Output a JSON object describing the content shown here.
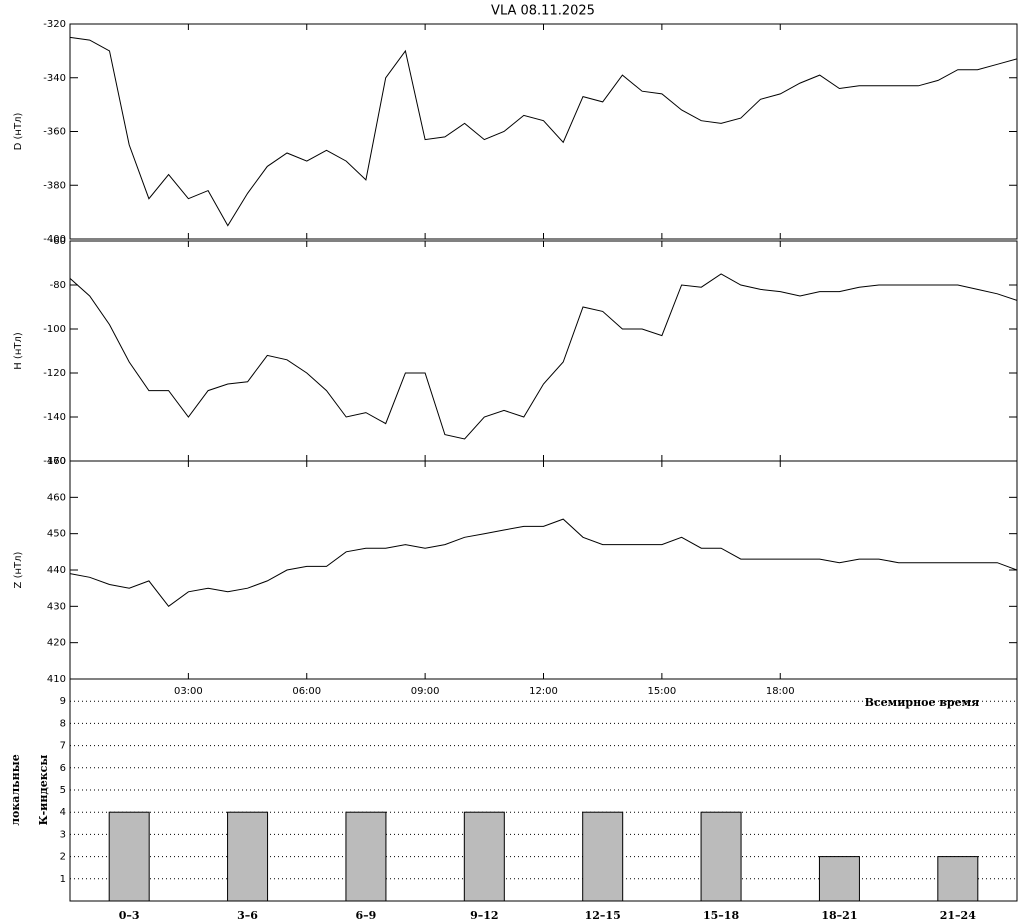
{
  "chart_data": [
    {
      "type": "line",
      "title": "VLA   08.11.2025",
      "ylabel": "D (нТл)",
      "x": [
        0,
        0.5,
        1,
        1.5,
        2,
        2.5,
        3,
        3.5,
        4,
        4.5,
        5,
        5.5,
        6,
        6.5,
        7,
        7.5,
        8,
        8.5,
        9,
        9.5,
        10,
        10.5,
        11,
        11.5,
        12,
        12.5,
        13,
        13.5,
        14,
        14.5,
        15,
        15.5,
        16,
        16.5,
        17,
        17.5,
        18,
        18.5,
        19,
        19.5,
        20,
        20.5,
        21,
        21.5,
        22,
        22.5,
        23,
        23.5,
        24
      ],
      "values": [
        -325,
        -326,
        -330,
        -365,
        -385,
        -376,
        -385,
        -382,
        -395,
        -383,
        -373,
        -368,
        -371,
        -367,
        -371,
        -378,
        -340,
        -330,
        -363,
        -362,
        -357,
        -363,
        -360,
        -354,
        -356,
        -364,
        -347,
        -349,
        -339,
        -345,
        -346,
        -352,
        -356,
        -357,
        -355,
        -348,
        -346,
        -342,
        -339,
        -344,
        -343,
        -343,
        -343,
        -343,
        -341,
        -337,
        -337,
        -335,
        -333
      ],
      "color": "#000000",
      "xlim": [
        0,
        24
      ],
      "ylim": [
        -400,
        -320
      ],
      "yticks": [
        -400,
        -380,
        -360,
        -340,
        -320
      ]
    },
    {
      "type": "line",
      "ylabel": "H (нТл)",
      "x": [
        0,
        0.5,
        1,
        1.5,
        2,
        2.5,
        3,
        3.5,
        4,
        4.5,
        5,
        5.5,
        6,
        6.5,
        7,
        7.5,
        8,
        8.5,
        9,
        9.5,
        10,
        10.5,
        11,
        11.5,
        12,
        12.5,
        13,
        13.5,
        14,
        14.5,
        15,
        15.5,
        16,
        16.5,
        17,
        17.5,
        18,
        18.5,
        19,
        19.5,
        20,
        20.5,
        21,
        21.5,
        22,
        22.5,
        23,
        23.5,
        24
      ],
      "values": [
        -77,
        -85,
        -98,
        -115,
        -128,
        -128,
        -140,
        -128,
        -125,
        -124,
        -112,
        -114,
        -120,
        -128,
        -140,
        -138,
        -143,
        -120,
        -120,
        -148,
        -150,
        -140,
        -137,
        -140,
        -125,
        -115,
        -90,
        -92,
        -100,
        -100,
        -103,
        -80,
        -81,
        -75,
        -80,
        -82,
        -83,
        -85,
        -83,
        -83,
        -81,
        -80,
        -80,
        -80,
        -80,
        -80,
        -82,
        -84,
        -87
      ],
      "color": "#000000",
      "xlim": [
        0,
        24
      ],
      "ylim": [
        -160,
        -60
      ],
      "yticks": [
        -160,
        -140,
        -120,
        -100,
        -80,
        -60
      ]
    },
    {
      "type": "line",
      "ylabel": "Z (нТл)",
      "xlabel": "Всемирное время",
      "x": [
        0,
        0.5,
        1,
        1.5,
        2,
        2.5,
        3,
        3.5,
        4,
        4.5,
        5,
        5.5,
        6,
        6.5,
        7,
        7.5,
        8,
        8.5,
        9,
        9.5,
        10,
        10.5,
        11,
        11.5,
        12,
        12.5,
        13,
        13.5,
        14,
        14.5,
        15,
        15.5,
        16,
        16.5,
        17,
        17.5,
        18,
        18.5,
        19,
        19.5,
        20,
        20.5,
        21,
        21.5,
        22,
        22.5,
        23,
        23.5,
        24
      ],
      "values": [
        439,
        438,
        436,
        435,
        437,
        430,
        434,
        435,
        434,
        435,
        437,
        440,
        441,
        441,
        445,
        446,
        446,
        447,
        446,
        447,
        449,
        450,
        451,
        452,
        452,
        454,
        449,
        447,
        447,
        447,
        447,
        449,
        446,
        446,
        443,
        443,
        443,
        443,
        443,
        442,
        443,
        443,
        442,
        442,
        442,
        442,
        442,
        442,
        440
      ],
      "color": "#000000",
      "xlim": [
        0,
        24
      ],
      "ylim": [
        410,
        470
      ],
      "yticks": [
        410,
        420,
        430,
        440,
        450,
        460,
        470
      ],
      "xticks": [
        {
          "value": 3,
          "label": "03:00"
        },
        {
          "value": 6,
          "label": "06:00"
        },
        {
          "value": 9,
          "label": "09:00"
        },
        {
          "value": 12,
          "label": "12:00"
        },
        {
          "value": 15,
          "label": "15:00"
        },
        {
          "value": 18,
          "label": "18:00"
        }
      ]
    },
    {
      "type": "bar",
      "ylabel": [
        "локальные",
        "К-индексы"
      ],
      "categories": [
        "0–3",
        "3–6",
        "6–9",
        "9–12",
        "12–15",
        "15–18",
        "18–21",
        "21–24"
      ],
      "values": [
        4,
        4,
        4,
        4,
        4,
        4,
        2,
        2
      ],
      "color": "#bbbbbb",
      "ylim": [
        0,
        10
      ],
      "yticks": [
        1,
        2,
        3,
        4,
        5,
        6,
        7,
        8,
        9
      ],
      "grid": true
    }
  ]
}
